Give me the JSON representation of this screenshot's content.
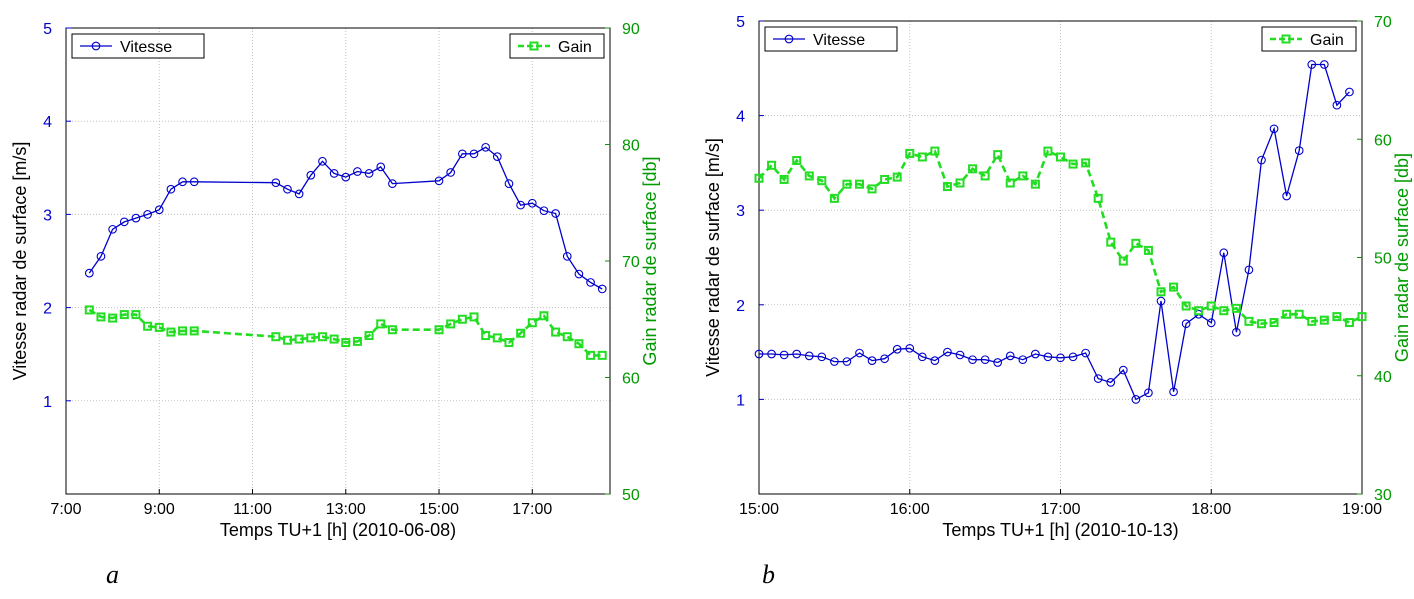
{
  "colors": {
    "speed": "#0000cc",
    "gain": "#22dd22",
    "gainAxis": "#009900",
    "grid": "#bfbfbf",
    "axis": "#000000"
  },
  "chart_data": [
    {
      "type": "line",
      "panel_label": "a",
      "xlabel": "Temps TU+1 [h] (2010-06-08)",
      "ylabel_left": "Vitesse radar de surface [m/s]",
      "ylabel_right": "Gain radar de surface [db]",
      "xlim": [
        "7:00",
        "18:40"
      ],
      "xticks": [
        "7:00",
        "9:00",
        "11:00",
        "13:00",
        "15:00",
        "17:00"
      ],
      "ylim_left": [
        0,
        5
      ],
      "yticks_left": [
        "1",
        "2",
        "3",
        "4",
        "5"
      ],
      "ylim_right": [
        50,
        90
      ],
      "yticks_right": [
        "50",
        "60",
        "70",
        "80",
        "90"
      ],
      "grid": true,
      "series": [
        {
          "name": "Vitesse",
          "axis": "left",
          "marker": "circle",
          "style": "solid",
          "legend": "top-left",
          "x": [
            "7:30",
            "7:45",
            "8:00",
            "8:15",
            "8:30",
            "8:45",
            "9:00",
            "9:15",
            "9:30",
            "9:45",
            "11:30",
            "11:45",
            "12:00",
            "12:15",
            "12:30",
            "12:45",
            "13:00",
            "13:15",
            "13:30",
            "13:45",
            "14:00",
            "15:00",
            "15:15",
            "15:30",
            "15:45",
            "16:00",
            "16:15",
            "16:30",
            "16:45",
            "17:00",
            "17:15",
            "17:30",
            "17:45",
            "18:00",
            "18:15",
            "18:30"
          ],
          "y": [
            2.37,
            2.55,
            2.84,
            2.92,
            2.96,
            3.0,
            3.05,
            3.27,
            3.35,
            3.35,
            3.34,
            3.27,
            3.22,
            3.42,
            3.57,
            3.44,
            3.4,
            3.46,
            3.44,
            3.51,
            3.33,
            3.36,
            3.45,
            3.65,
            3.65,
            3.72,
            3.62,
            3.33,
            3.1,
            3.12,
            3.04,
            3.01,
            2.55,
            2.36,
            2.27,
            2.2
          ]
        },
        {
          "name": "Gain",
          "axis": "right",
          "marker": "square",
          "style": "dashed",
          "legend": "top-right",
          "x": [
            "7:30",
            "7:45",
            "8:00",
            "8:15",
            "8:30",
            "8:45",
            "9:00",
            "9:15",
            "9:30",
            "9:45",
            "11:30",
            "11:45",
            "12:00",
            "12:15",
            "12:30",
            "12:45",
            "13:00",
            "13:15",
            "13:30",
            "13:45",
            "14:00",
            "15:00",
            "15:15",
            "15:30",
            "15:45",
            "16:00",
            "16:15",
            "16:30",
            "16:45",
            "17:00",
            "17:15",
            "17:30",
            "17:45",
            "18:00",
            "18:15",
            "18:30"
          ],
          "y": [
            65.8,
            65.2,
            65.1,
            65.4,
            65.4,
            64.4,
            64.3,
            63.9,
            64.0,
            64.0,
            63.5,
            63.2,
            63.3,
            63.4,
            63.5,
            63.3,
            63.0,
            63.1,
            63.6,
            64.6,
            64.1,
            64.1,
            64.6,
            65.0,
            65.2,
            63.6,
            63.4,
            63.0,
            63.8,
            64.7,
            65.3,
            63.9,
            63.5,
            62.9,
            61.9,
            61.9
          ]
        }
      ]
    },
    {
      "type": "line",
      "panel_label": "b",
      "xlabel": "Temps TU+1 [h] (2010-10-13)",
      "ylabel_left": "Vitesse radar de surface [m/s]",
      "ylabel_right": "Gain radar de surface [db]",
      "xlim": [
        "15:00",
        "19:00"
      ],
      "xticks": [
        "15:00",
        "16:00",
        "17:00",
        "18:00",
        "19:00"
      ],
      "ylim_left": [
        0,
        5
      ],
      "yticks_left": [
        "1",
        "2",
        "3",
        "4",
        "5"
      ],
      "ylim_right": [
        30,
        70
      ],
      "yticks_right": [
        "30",
        "40",
        "50",
        "60",
        "70"
      ],
      "grid": true,
      "series": [
        {
          "name": "Vitesse",
          "axis": "left",
          "marker": "circle",
          "style": "solid",
          "legend": "top-left",
          "x": [
            "15:00",
            "15:05",
            "15:10",
            "15:15",
            "15:20",
            "15:25",
            "15:30",
            "15:35",
            "15:40",
            "15:45",
            "15:50",
            "15:55",
            "16:00",
            "16:05",
            "16:10",
            "16:15",
            "16:20",
            "16:25",
            "16:30",
            "16:35",
            "16:40",
            "16:45",
            "16:50",
            "16:55",
            "17:00",
            "17:05",
            "17:10",
            "17:15",
            "17:20",
            "17:25",
            "17:30",
            "17:35",
            "17:40",
            "17:45",
            "17:50",
            "17:55",
            "18:00",
            "18:05",
            "18:10",
            "18:15",
            "18:20",
            "18:25",
            "18:30",
            "18:35",
            "18:40",
            "18:45",
            "18:50",
            "18:55"
          ],
          "y": [
            1.48,
            1.48,
            1.47,
            1.48,
            1.46,
            1.45,
            1.4,
            1.4,
            1.49,
            1.41,
            1.43,
            1.53,
            1.54,
            1.45,
            1.41,
            1.5,
            1.47,
            1.42,
            1.42,
            1.39,
            1.46,
            1.42,
            1.48,
            1.45,
            1.44,
            1.45,
            1.49,
            1.22,
            1.18,
            1.31,
            1.0,
            1.07,
            2.04,
            1.08,
            1.8,
            1.9,
            1.81,
            2.55,
            1.71,
            2.37,
            3.53,
            3.86,
            3.15,
            3.63,
            4.54,
            4.54,
            4.11,
            4.25
          ]
        },
        {
          "name": "Gain",
          "axis": "right",
          "marker": "square",
          "style": "dashed",
          "legend": "top-right",
          "x": [
            "15:00",
            "15:05",
            "15:10",
            "15:15",
            "15:20",
            "15:25",
            "15:30",
            "15:35",
            "15:40",
            "15:45",
            "15:50",
            "15:55",
            "16:00",
            "16:05",
            "16:10",
            "16:15",
            "16:20",
            "16:25",
            "16:30",
            "16:35",
            "16:40",
            "16:45",
            "16:50",
            "16:55",
            "17:00",
            "17:05",
            "17:10",
            "17:15",
            "17:20",
            "17:25",
            "17:30",
            "17:35",
            "17:40",
            "17:45",
            "17:50",
            "17:55",
            "18:00",
            "18:05",
            "18:10",
            "18:15",
            "18:20",
            "18:25",
            "18:30",
            "18:35",
            "18:40",
            "18:45",
            "18:50",
            "18:55",
            "19:00"
          ],
          "y": [
            56.7,
            57.8,
            56.6,
            58.2,
            56.9,
            56.5,
            55.0,
            56.2,
            56.2,
            55.8,
            56.6,
            56.8,
            58.8,
            58.5,
            59.0,
            56.0,
            56.3,
            57.5,
            56.9,
            58.7,
            56.3,
            56.9,
            56.2,
            59.0,
            58.5,
            57.9,
            58.0,
            55.0,
            51.3,
            49.7,
            51.2,
            50.6,
            47.1,
            47.5,
            45.9,
            45.5,
            45.9,
            45.5,
            45.7,
            44.6,
            44.4,
            44.5,
            45.2,
            45.2,
            44.6,
            44.7,
            45.0,
            44.5,
            45.0
          ]
        }
      ]
    }
  ]
}
